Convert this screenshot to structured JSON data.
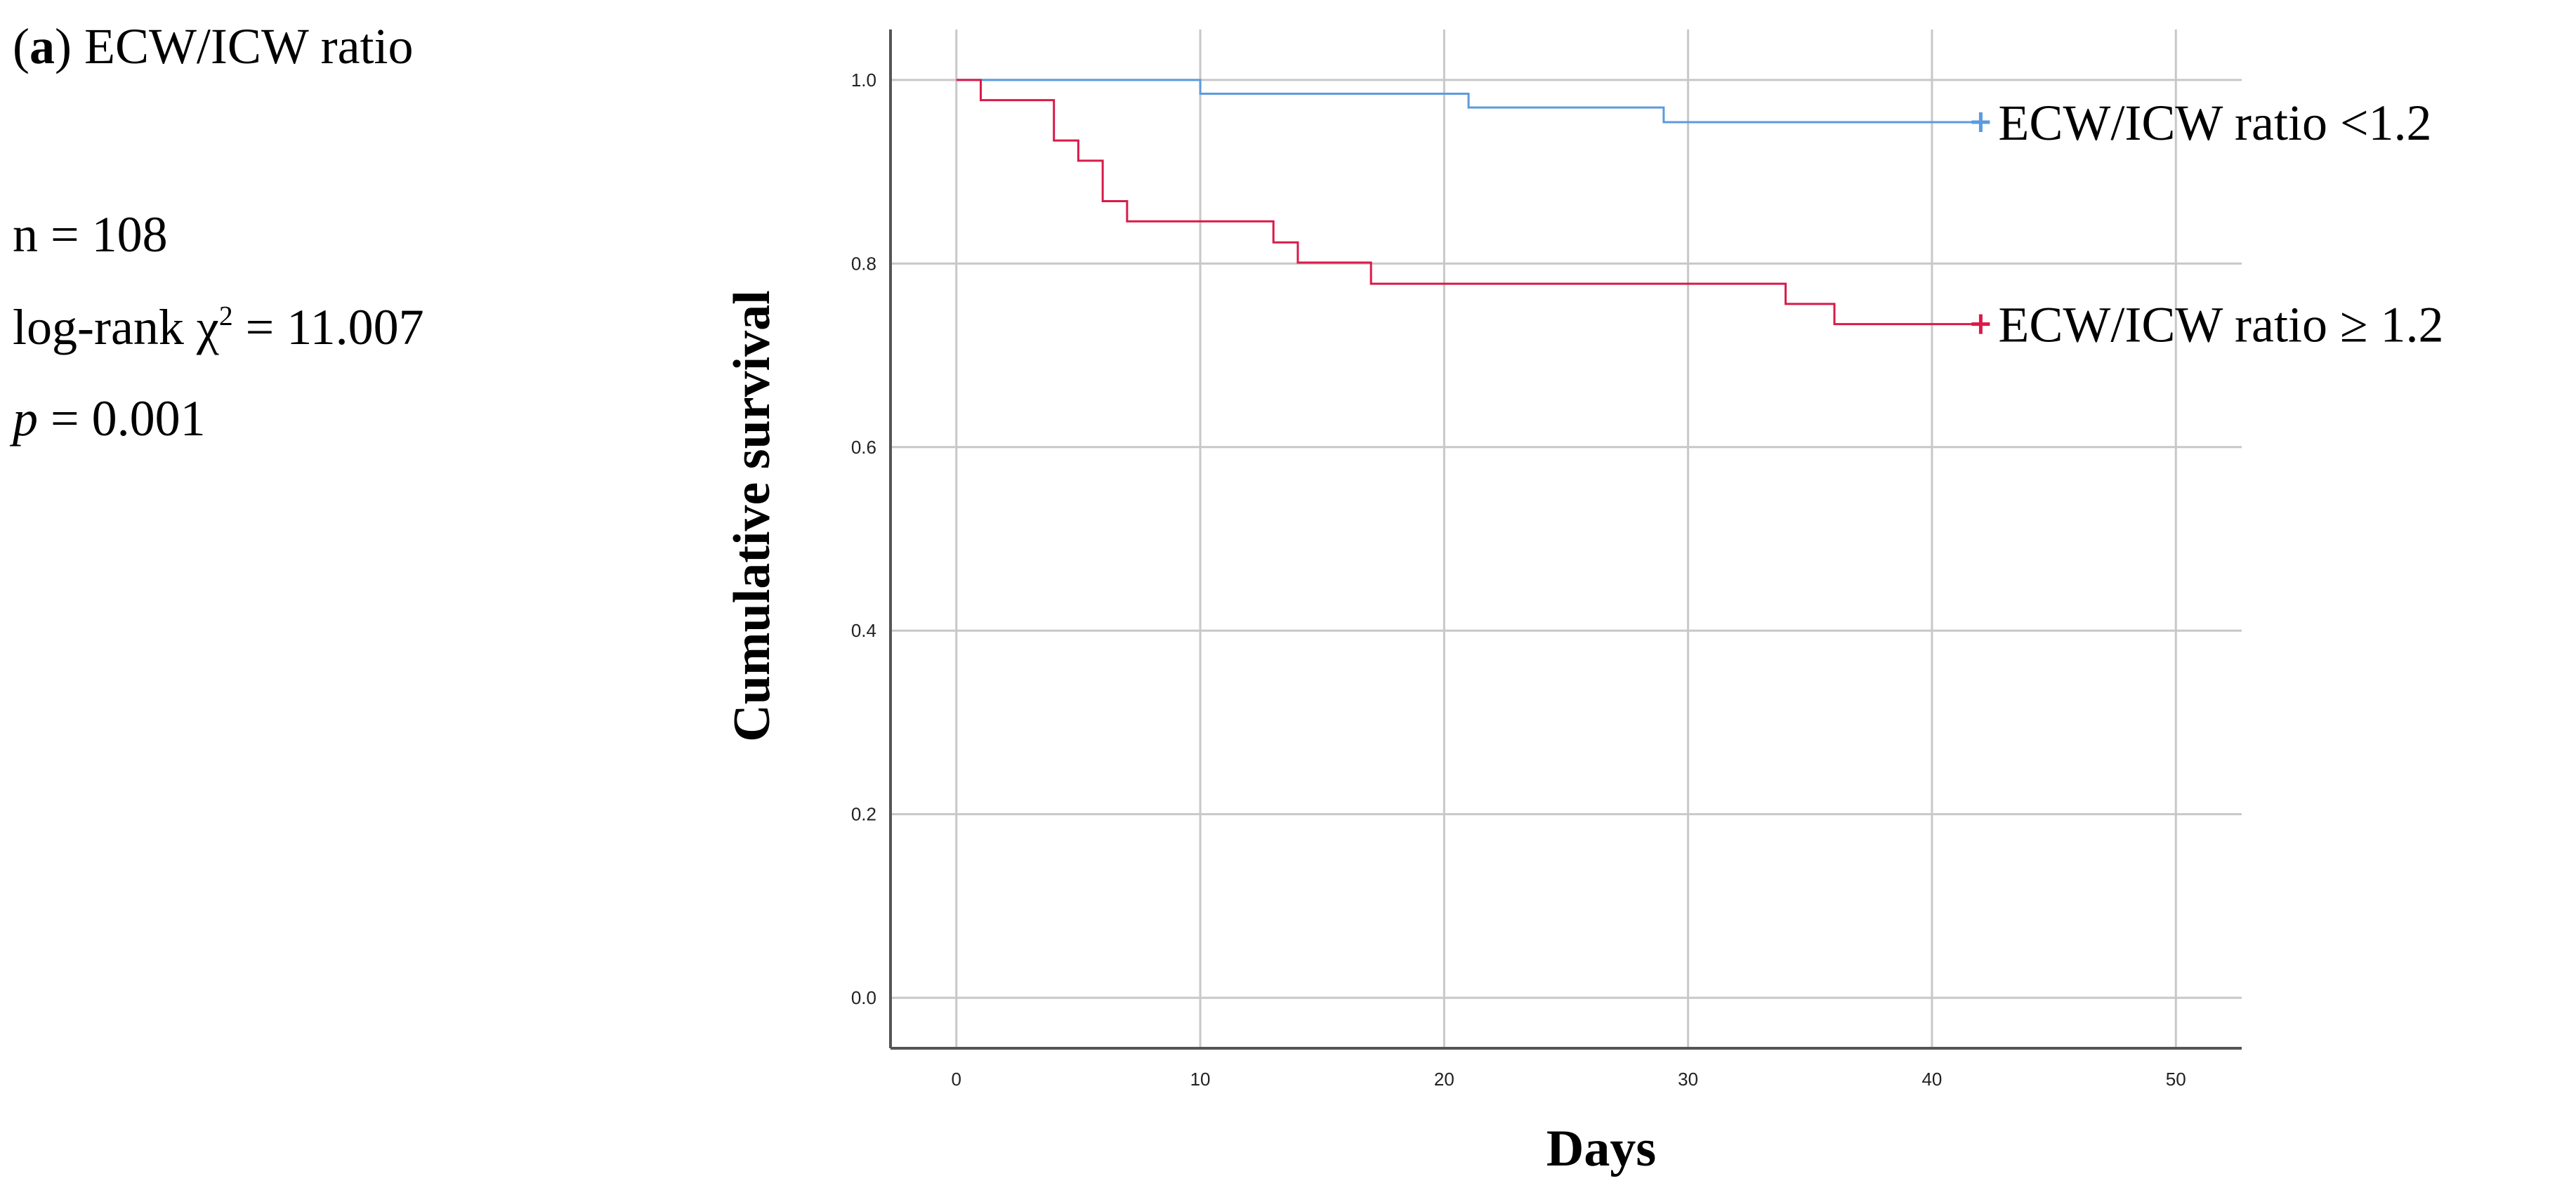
{
  "panel": {
    "label": "a",
    "title": "ECW/ICW ratio",
    "n_text": "n = 108",
    "logrank_prefix": "log-rank χ",
    "logrank_sup": "2",
    "logrank_value": " = 11.007",
    "p_symbol": "p",
    "p_value": " = 0.001"
  },
  "chart_data": {
    "type": "line",
    "subtype": "kaplan-meier step",
    "xlabel": "Days",
    "ylabel": "Cumulative survival",
    "xlim": [
      -2.7,
      52.7
    ],
    "ylim": [
      -0.055,
      1.055
    ],
    "xticks": [
      "0",
      "10",
      "20",
      "30",
      "40",
      "50"
    ],
    "yticks": [
      "0.0",
      "0.2",
      "0.4",
      "0.6",
      "0.8",
      "1.0"
    ],
    "grid": true,
    "legend_placement": "right of line ends",
    "series": [
      {
        "name": "ECW/ICW  ratio  <1.2",
        "color": "#5b9bde",
        "censor_x": 42,
        "steps": [
          [
            0,
            1.0
          ],
          [
            10,
            0.985
          ],
          [
            21,
            0.97
          ],
          [
            29,
            0.954
          ],
          [
            42,
            0.954
          ]
        ]
      },
      {
        "name": "ECW/ICW  ratio  ≥  1.2",
        "color": "#d81b4a",
        "censor_x": 42,
        "steps": [
          [
            0,
            1.0
          ],
          [
            1,
            0.978
          ],
          [
            4,
            0.934
          ],
          [
            5,
            0.912
          ],
          [
            6,
            0.868
          ],
          [
            7,
            0.846
          ],
          [
            13,
            0.823
          ],
          [
            14,
            0.801
          ],
          [
            17,
            0.778
          ],
          [
            34,
            0.756
          ],
          [
            36,
            0.734
          ],
          [
            42,
            0.734
          ]
        ]
      }
    ]
  }
}
